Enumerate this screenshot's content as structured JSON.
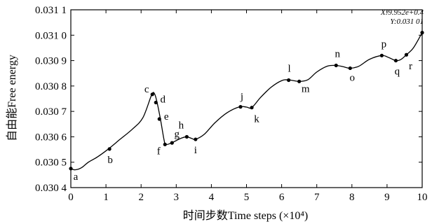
{
  "chart_data": {
    "type": "line",
    "xlabel": "时间步数Time steps (×10⁴)",
    "ylabel": "自由能Free energy",
    "xlim": [
      0,
      10
    ],
    "ylim": [
      0.0304,
      0.0311
    ],
    "x_ticks": [
      0,
      1,
      2,
      3,
      4,
      5,
      6,
      7,
      8,
      9,
      10
    ],
    "x_tick_labels": [
      "0",
      "1",
      "2",
      "3",
      "4",
      "5",
      "6",
      "7",
      "8",
      "9",
      "10"
    ],
    "y_ticks": [
      0.0304,
      0.0305,
      0.0306,
      0.0307,
      0.0308,
      0.0309,
      0.031,
      0.0311
    ],
    "y_tick_labels": [
      "0.030 4",
      "0.030 5",
      "0.030 6",
      "0.030 7",
      "0.030 8",
      "0.030 9",
      "0.031 0",
      "0.031 1"
    ],
    "grid": false,
    "series": [
      {
        "x": [
          0,
          0.12,
          0.3,
          0.5,
          0.75,
          1.05,
          1.4,
          1.75,
          2.05,
          2.3,
          2.38,
          2.45,
          2.55,
          2.65,
          2.7,
          2.85,
          3.0,
          3.15,
          3.3,
          3.45,
          3.55,
          3.8,
          4.1,
          4.45,
          4.8,
          5.0,
          5.15,
          5.4,
          5.7,
          6.0,
          6.2,
          6.5,
          6.75,
          7.0,
          7.3,
          7.55,
          7.75,
          7.95,
          8.2,
          8.5,
          8.85,
          9.05,
          9.25,
          9.4,
          9.55,
          9.75,
          10.0
        ],
        "y": [
          0.030475,
          0.03047,
          0.030478,
          0.0305,
          0.03052,
          0.03055,
          0.03059,
          0.03063,
          0.030675,
          0.030765,
          0.03077,
          0.030738,
          0.03067,
          0.03059,
          0.03057,
          0.030575,
          0.030585,
          0.030595,
          0.0306,
          0.030593,
          0.03059,
          0.03061,
          0.030655,
          0.030695,
          0.030718,
          0.030717,
          0.030715,
          0.030755,
          0.030795,
          0.030821,
          0.030824,
          0.030818,
          0.030825,
          0.030855,
          0.030878,
          0.030881,
          0.030876,
          0.03087,
          0.030878,
          0.030905,
          0.03092,
          0.030912,
          0.0309,
          0.030905,
          0.030923,
          0.03095,
          0.0310101
        ]
      }
    ],
    "labeled_points": [
      {
        "label": "a",
        "x": 0.0,
        "y": 0.030475
      },
      {
        "label": "b",
        "x": 1.1,
        "y": 0.030552
      },
      {
        "label": "c",
        "x": 2.32,
        "y": 0.030767
      },
      {
        "label": "d",
        "x": 2.42,
        "y": 0.030735
      },
      {
        "label": "e",
        "x": 2.52,
        "y": 0.03067
      },
      {
        "label": "f",
        "x": 2.68,
        "y": 0.03057
      },
      {
        "label": "g",
        "x": 2.88,
        "y": 0.030576
      },
      {
        "label": "h",
        "x": 3.3,
        "y": 0.0306
      },
      {
        "label": "i",
        "x": 3.55,
        "y": 0.03059
      },
      {
        "label": "j",
        "x": 4.83,
        "y": 0.030718
      },
      {
        "label": "k",
        "x": 5.15,
        "y": 0.030715
      },
      {
        "label": "l",
        "x": 6.2,
        "y": 0.030823
      },
      {
        "label": "m",
        "x": 6.5,
        "y": 0.030818
      },
      {
        "label": "n",
        "x": 7.55,
        "y": 0.030881
      },
      {
        "label": "o",
        "x": 7.95,
        "y": 0.03087
      },
      {
        "label": "p",
        "x": 8.85,
        "y": 0.03092
      },
      {
        "label": "q",
        "x": 9.25,
        "y": 0.0309
      },
      {
        "label": "r",
        "x": 9.55,
        "y": 0.030923
      }
    ],
    "datatip": {
      "x_text": "X:9.952e+0.4",
      "y_text": "Y:0.031 01"
    }
  }
}
